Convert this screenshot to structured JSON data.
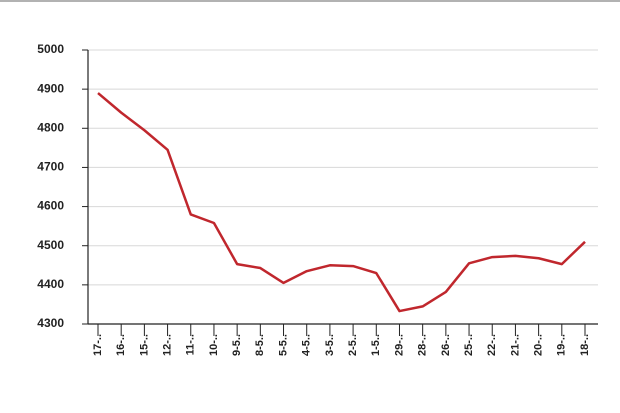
{
  "chart_data": {
    "type": "line",
    "categories": [
      "17-..",
      "16-..",
      "15-..",
      "12-..",
      "11-..",
      "10-..",
      "9-5..",
      "8-5..",
      "5-5..",
      "4-5..",
      "3-5..",
      "2-5..",
      "1-5..",
      "29-..",
      "28-..",
      "26-..",
      "25-..",
      "22-..",
      "21-..",
      "20-..",
      "19-..",
      "18-.."
    ],
    "values": [
      4890,
      4840,
      4795,
      4745,
      4580,
      4558,
      4453,
      4443,
      4405,
      4435,
      4450,
      4448,
      4430,
      4333,
      4345,
      4382,
      4455,
      4471,
      4474,
      4468,
      4453,
      4510
    ],
    "color": "#c0272d",
    "ylim": [
      4300,
      5000
    ],
    "yticks": [
      4300,
      4400,
      4500,
      4600,
      4700,
      4800,
      4900,
      5000
    ],
    "grid": true
  }
}
